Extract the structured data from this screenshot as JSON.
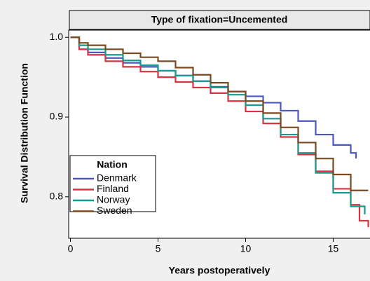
{
  "chart_data": {
    "type": "step-line",
    "title": "Type of fixation=Uncemented",
    "xlabel": "Years postoperatively",
    "ylabel": "Survival Distribution Function",
    "legend_title": "Nation",
    "legend": "lower left",
    "xlim": [
      -0.1,
      17.1
    ],
    "xticks": [
      0,
      5,
      10,
      15
    ],
    "ylim": [
      0.748,
      1.009
    ],
    "yticks": [
      {
        "value": 0.8,
        "label": "0.8"
      },
      {
        "value": 0.9,
        "label": "0.9"
      },
      {
        "value": 1.0,
        "label": "1.0"
      }
    ],
    "series": [
      {
        "name": "Denmark",
        "color": "#4a58c0",
        "x": [
          0,
          0.5,
          1,
          2,
          3,
          4,
          5,
          6,
          7,
          8,
          9,
          10,
          11,
          12,
          13,
          14,
          15,
          16,
          16.3
        ],
        "values": [
          1.0,
          0.985,
          0.981,
          0.974,
          0.968,
          0.963,
          0.958,
          0.952,
          0.945,
          0.938,
          0.932,
          0.926,
          0.918,
          0.908,
          0.895,
          0.878,
          0.865,
          0.855,
          0.848
        ]
      },
      {
        "name": "Finland",
        "color": "#d9333f",
        "x": [
          0,
          0.5,
          1,
          2,
          3,
          4,
          5,
          6,
          7,
          8,
          9,
          10,
          11,
          12,
          13,
          14,
          15,
          16,
          16.5,
          17
        ],
        "values": [
          1.0,
          0.985,
          0.978,
          0.97,
          0.963,
          0.957,
          0.95,
          0.944,
          0.937,
          0.93,
          0.92,
          0.907,
          0.892,
          0.875,
          0.853,
          0.832,
          0.81,
          0.79,
          0.77,
          0.762
        ]
      },
      {
        "name": "Norway",
        "color": "#179a8f",
        "x": [
          0,
          0.5,
          1,
          2,
          3,
          4,
          5,
          6,
          7,
          8,
          9,
          10,
          11,
          12,
          13,
          14,
          15,
          16,
          16.8
        ],
        "values": [
          1.0,
          0.99,
          0.985,
          0.978,
          0.971,
          0.965,
          0.958,
          0.952,
          0.945,
          0.937,
          0.928,
          0.915,
          0.898,
          0.878,
          0.855,
          0.83,
          0.805,
          0.788,
          0.778
        ]
      },
      {
        "name": "Sweden",
        "color": "#7b4a1e",
        "x": [
          0,
          0.5,
          1,
          2,
          3,
          4,
          5,
          6,
          7,
          8,
          9,
          10,
          11,
          12,
          13,
          14,
          15,
          16,
          17
        ],
        "values": [
          1.0,
          0.993,
          0.99,
          0.985,
          0.98,
          0.975,
          0.97,
          0.962,
          0.953,
          0.943,
          0.932,
          0.92,
          0.905,
          0.887,
          0.868,
          0.848,
          0.828,
          0.808,
          0.808
        ]
      }
    ]
  }
}
